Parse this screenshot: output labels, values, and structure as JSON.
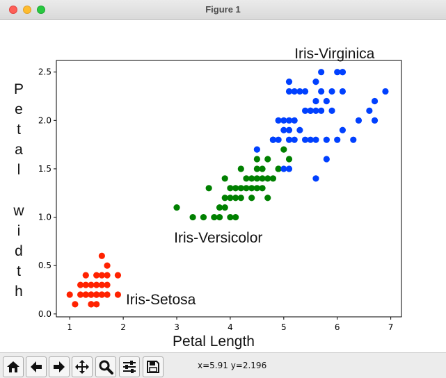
{
  "window": {
    "title": "Figure 1"
  },
  "toolbar": {
    "buttons": [
      {
        "name": "home-button",
        "icon": "home-icon"
      },
      {
        "name": "back-button",
        "icon": "arrow-left-icon"
      },
      {
        "name": "forward-button",
        "icon": "arrow-right-icon"
      },
      {
        "name": "pan-button",
        "icon": "move-icon"
      },
      {
        "name": "zoom-button",
        "icon": "magnifier-icon"
      },
      {
        "name": "configure-subplots-button",
        "icon": "sliders-icon"
      },
      {
        "name": "save-button",
        "icon": "floppy-disk-icon"
      }
    ],
    "coords": "x=5.91 y=2.196"
  },
  "chart_data": {
    "type": "scatter",
    "title": "",
    "xlabel": "Petal Length",
    "ylabel": "P e t a l   w i d t h",
    "ylabel_chars": [
      "P",
      "e",
      "t",
      "a",
      "l",
      "",
      "w",
      "i",
      "d",
      "t",
      "h"
    ],
    "xlim": [
      0.75,
      7.2
    ],
    "ylim": [
      -0.03,
      2.62
    ],
    "x_ticks": [
      1,
      2,
      3,
      4,
      5,
      6,
      7
    ],
    "x_tick_labels": [
      "1",
      "2",
      "3",
      "4",
      "5",
      "6",
      "7"
    ],
    "y_ticks": [
      0.0,
      0.5,
      1.0,
      1.5,
      2.0,
      2.5
    ],
    "y_tick_labels": [
      "0.0",
      "0.5",
      "1.0",
      "1.5",
      "2.0",
      "2.5"
    ],
    "grid": false,
    "legend": "none",
    "annotations": [
      {
        "text": "Iris-Setosa",
        "x": 2.05,
        "y": 0.1
      },
      {
        "text": "Iris-Versicolor",
        "x": 2.95,
        "y": 0.74
      },
      {
        "text": "Iris-Virginica",
        "x": 5.2,
        "y": 2.64
      }
    ],
    "series": [
      {
        "label": "Iris-Setosa",
        "color": "#ff2200",
        "points": [
          [
            1.0,
            0.2
          ],
          [
            1.1,
            0.1
          ],
          [
            1.2,
            0.2
          ],
          [
            1.3,
            0.2
          ],
          [
            1.3,
            0.3
          ],
          [
            1.3,
            0.4
          ],
          [
            1.3,
            0.2
          ],
          [
            1.4,
            0.2
          ],
          [
            1.4,
            0.1
          ],
          [
            1.4,
            0.3
          ],
          [
            1.4,
            0.2
          ],
          [
            1.4,
            0.1
          ],
          [
            1.5,
            0.2
          ],
          [
            1.5,
            0.4
          ],
          [
            1.5,
            0.1
          ],
          [
            1.5,
            0.3
          ],
          [
            1.5,
            0.2
          ],
          [
            1.6,
            0.2
          ],
          [
            1.6,
            0.4
          ],
          [
            1.6,
            0.6
          ],
          [
            1.6,
            0.2
          ],
          [
            1.7,
            0.4
          ],
          [
            1.7,
            0.3
          ],
          [
            1.7,
            0.5
          ],
          [
            1.7,
            0.2
          ],
          [
            1.9,
            0.2
          ],
          [
            1.9,
            0.4
          ],
          [
            1.6,
            0.3
          ],
          [
            1.2,
            0.3
          ],
          [
            1.5,
            0.2
          ]
        ]
      },
      {
        "label": "Iris-Versicolor",
        "color": "#008000",
        "points": [
          [
            3.0,
            1.1
          ],
          [
            3.3,
            1.0
          ],
          [
            3.5,
            1.0
          ],
          [
            3.6,
            1.3
          ],
          [
            3.7,
            1.0
          ],
          [
            3.8,
            1.1
          ],
          [
            3.9,
            1.1
          ],
          [
            3.9,
            1.2
          ],
          [
            3.9,
            1.4
          ],
          [
            4.0,
            1.0
          ],
          [
            4.0,
            1.2
          ],
          [
            4.0,
            1.3
          ],
          [
            4.1,
            1.0
          ],
          [
            4.1,
            1.3
          ],
          [
            4.2,
            1.2
          ],
          [
            4.2,
            1.3
          ],
          [
            4.2,
            1.5
          ],
          [
            4.3,
            1.3
          ],
          [
            4.4,
            1.2
          ],
          [
            4.4,
            1.3
          ],
          [
            4.4,
            1.4
          ],
          [
            4.5,
            1.3
          ],
          [
            4.5,
            1.5
          ],
          [
            4.5,
            1.6
          ],
          [
            4.6,
            1.3
          ],
          [
            4.6,
            1.4
          ],
          [
            4.6,
            1.5
          ],
          [
            4.7,
            1.2
          ],
          [
            4.7,
            1.4
          ],
          [
            4.7,
            1.6
          ],
          [
            4.8,
            1.4
          ],
          [
            4.8,
            1.8
          ],
          [
            4.9,
            1.5
          ],
          [
            5.0,
            1.7
          ],
          [
            5.1,
            1.6
          ],
          [
            4.1,
            1.2
          ],
          [
            4.5,
            1.4
          ],
          [
            4.9,
            1.5
          ],
          [
            4.3,
            1.4
          ],
          [
            3.8,
            1.0
          ]
        ]
      },
      {
        "label": "Iris-Virginica",
        "color": "#0040ff",
        "points": [
          [
            4.5,
            1.7
          ],
          [
            4.8,
            1.8
          ],
          [
            4.8,
            1.8
          ],
          [
            4.9,
            1.8
          ],
          [
            4.9,
            2.0
          ],
          [
            5.0,
            1.5
          ],
          [
            5.0,
            1.9
          ],
          [
            5.0,
            2.0
          ],
          [
            5.1,
            1.5
          ],
          [
            5.1,
            1.8
          ],
          [
            5.1,
            1.9
          ],
          [
            5.1,
            2.0
          ],
          [
            5.1,
            2.3
          ],
          [
            5.1,
            2.4
          ],
          [
            5.2,
            2.0
          ],
          [
            5.2,
            2.3
          ],
          [
            5.3,
            1.9
          ],
          [
            5.3,
            2.3
          ],
          [
            5.4,
            2.1
          ],
          [
            5.4,
            2.3
          ],
          [
            5.5,
            1.8
          ],
          [
            5.5,
            2.1
          ],
          [
            5.6,
            1.4
          ],
          [
            5.6,
            1.8
          ],
          [
            5.6,
            2.1
          ],
          [
            5.6,
            2.2
          ],
          [
            5.6,
            2.4
          ],
          [
            5.7,
            2.1
          ],
          [
            5.7,
            2.3
          ],
          [
            5.7,
            2.5
          ],
          [
            5.8,
            1.6
          ],
          [
            5.8,
            1.8
          ],
          [
            5.8,
            2.2
          ],
          [
            5.9,
            2.1
          ],
          [
            5.9,
            2.3
          ],
          [
            6.0,
            1.8
          ],
          [
            6.0,
            2.5
          ],
          [
            6.1,
            1.9
          ],
          [
            6.1,
            2.3
          ],
          [
            6.1,
            2.5
          ],
          [
            6.3,
            1.8
          ],
          [
            6.4,
            2.0
          ],
          [
            6.6,
            2.1
          ],
          [
            6.7,
            2.0
          ],
          [
            6.7,
            2.2
          ],
          [
            6.9,
            2.3
          ],
          [
            5.4,
            1.8
          ],
          [
            5.5,
            2.1
          ],
          [
            5.2,
            1.8
          ],
          [
            6.1,
            2.5
          ]
        ]
      }
    ]
  }
}
